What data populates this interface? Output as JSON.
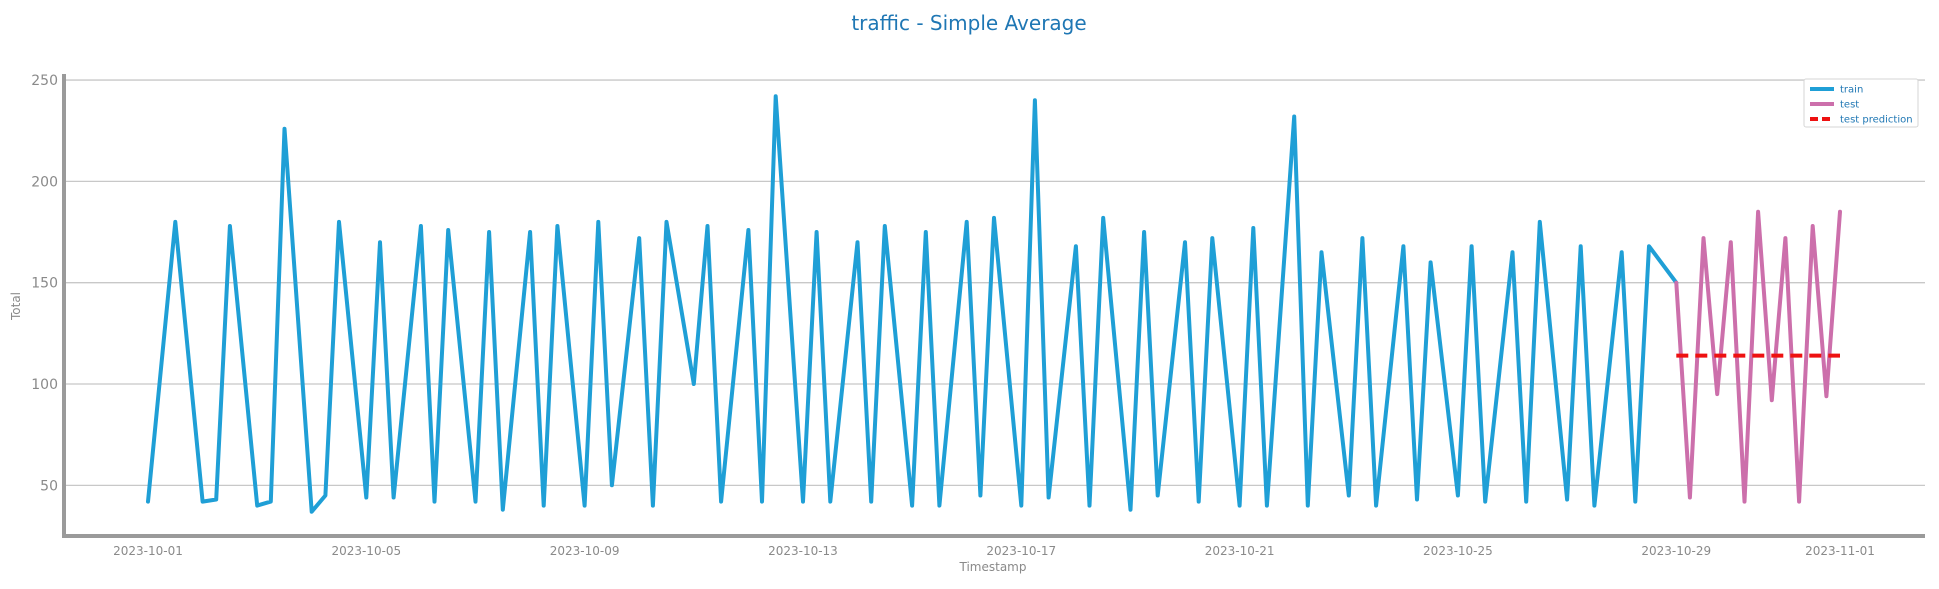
{
  "chart_data": {
    "type": "line",
    "title": "traffic - Simple Average",
    "xlabel": "Timestamp",
    "ylabel": "Total",
    "x_range": [
      "2023-10-01",
      "2023-11-01"
    ],
    "ylim": [
      25,
      252
    ],
    "y_ticks": [
      50,
      100,
      150,
      200,
      250
    ],
    "x_ticks": [
      "2023-10-01",
      "2023-10-05",
      "2023-10-09",
      "2023-10-13",
      "2023-10-17",
      "2023-10-21",
      "2023-10-25",
      "2023-10-29",
      "2023-11-01"
    ],
    "grid": "horizontal",
    "legend_position": "top-right",
    "series": [
      {
        "name": "train",
        "color": "#1f9fd6",
        "style": "solid",
        "x": [
          "2023-10-01",
          "2023-10-01 12:00",
          "2023-10-02",
          "2023-10-02 06:00",
          "2023-10-02 12:00",
          "2023-10-03",
          "2023-10-03 06:00",
          "2023-10-03 12:00",
          "2023-10-04",
          "2023-10-04 06:00",
          "2023-10-04 12:00",
          "2023-10-05",
          "2023-10-05 06:00",
          "2023-10-05 12:00",
          "2023-10-06",
          "2023-10-06 06:00",
          "2023-10-06 12:00",
          "2023-10-07",
          "2023-10-07 06:00",
          "2023-10-07 12:00",
          "2023-10-08",
          "2023-10-08 06:00",
          "2023-10-08 12:00",
          "2023-10-09",
          "2023-10-09 06:00",
          "2023-10-09 12:00",
          "2023-10-10",
          "2023-10-10 06:00",
          "2023-10-10 12:00",
          "2023-10-11",
          "2023-10-11 06:00",
          "2023-10-11 12:00",
          "2023-10-12",
          "2023-10-12 06:00",
          "2023-10-12 12:00",
          "2023-10-13",
          "2023-10-13 06:00",
          "2023-10-13 12:00",
          "2023-10-14",
          "2023-10-14 06:00",
          "2023-10-14 12:00",
          "2023-10-15",
          "2023-10-15 06:00",
          "2023-10-15 12:00",
          "2023-10-16",
          "2023-10-16 06:00",
          "2023-10-16 12:00",
          "2023-10-17",
          "2023-10-17 06:00",
          "2023-10-17 12:00",
          "2023-10-18",
          "2023-10-18 06:00",
          "2023-10-18 12:00",
          "2023-10-19",
          "2023-10-19 06:00",
          "2023-10-19 12:00",
          "2023-10-20",
          "2023-10-20 06:00",
          "2023-10-20 12:00",
          "2023-10-21",
          "2023-10-21 06:00",
          "2023-10-21 12:00",
          "2023-10-22",
          "2023-10-22 06:00",
          "2023-10-22 12:00",
          "2023-10-23",
          "2023-10-23 06:00",
          "2023-10-23 12:00",
          "2023-10-24",
          "2023-10-24 06:00",
          "2023-10-24 12:00",
          "2023-10-25",
          "2023-10-25 06:00",
          "2023-10-25 12:00",
          "2023-10-26",
          "2023-10-26 06:00",
          "2023-10-26 12:00",
          "2023-10-27",
          "2023-10-27 06:00",
          "2023-10-27 12:00",
          "2023-10-28",
          "2023-10-28 06:00",
          "2023-10-28 12:00",
          "2023-10-29"
        ],
        "y": [
          42,
          180,
          42,
          43,
          178,
          40,
          42,
          226,
          37,
          45,
          180,
          44,
          170,
          44,
          178,
          42,
          176,
          42,
          175,
          38,
          175,
          40,
          178,
          40,
          180,
          50,
          172,
          40,
          180,
          100,
          178,
          42,
          176,
          42,
          242,
          42,
          175,
          42,
          170,
          42,
          178,
          40,
          175,
          40,
          180,
          45,
          182,
          40,
          240,
          44,
          168,
          40,
          182,
          38,
          175,
          45,
          170,
          42,
          172,
          40,
          177,
          40,
          232,
          40,
          165,
          45,
          172,
          40,
          168,
          43,
          160,
          45,
          168,
          42,
          165,
          42,
          180,
          43,
          168,
          40,
          165,
          42,
          168,
          150
        ]
      },
      {
        "name": "test",
        "color": "#cc6fab",
        "style": "solid",
        "x": [
          "2023-10-29",
          "2023-10-29 06:00",
          "2023-10-29 12:00",
          "2023-10-29 18:00",
          "2023-10-30",
          "2023-10-30 06:00",
          "2023-10-30 12:00",
          "2023-10-30 18:00",
          "2023-10-31",
          "2023-10-31 06:00",
          "2023-10-31 12:00",
          "2023-10-31 18:00",
          "2023-11-01"
        ],
        "y": [
          150,
          44,
          172,
          95,
          170,
          42,
          185,
          92,
          172,
          42,
          178,
          94,
          185
        ]
      },
      {
        "name": "test prediction",
        "color": "#ee1111",
        "style": "dashed",
        "x": [
          "2023-10-29",
          "2023-11-01"
        ],
        "y": [
          114,
          114
        ]
      }
    ]
  }
}
